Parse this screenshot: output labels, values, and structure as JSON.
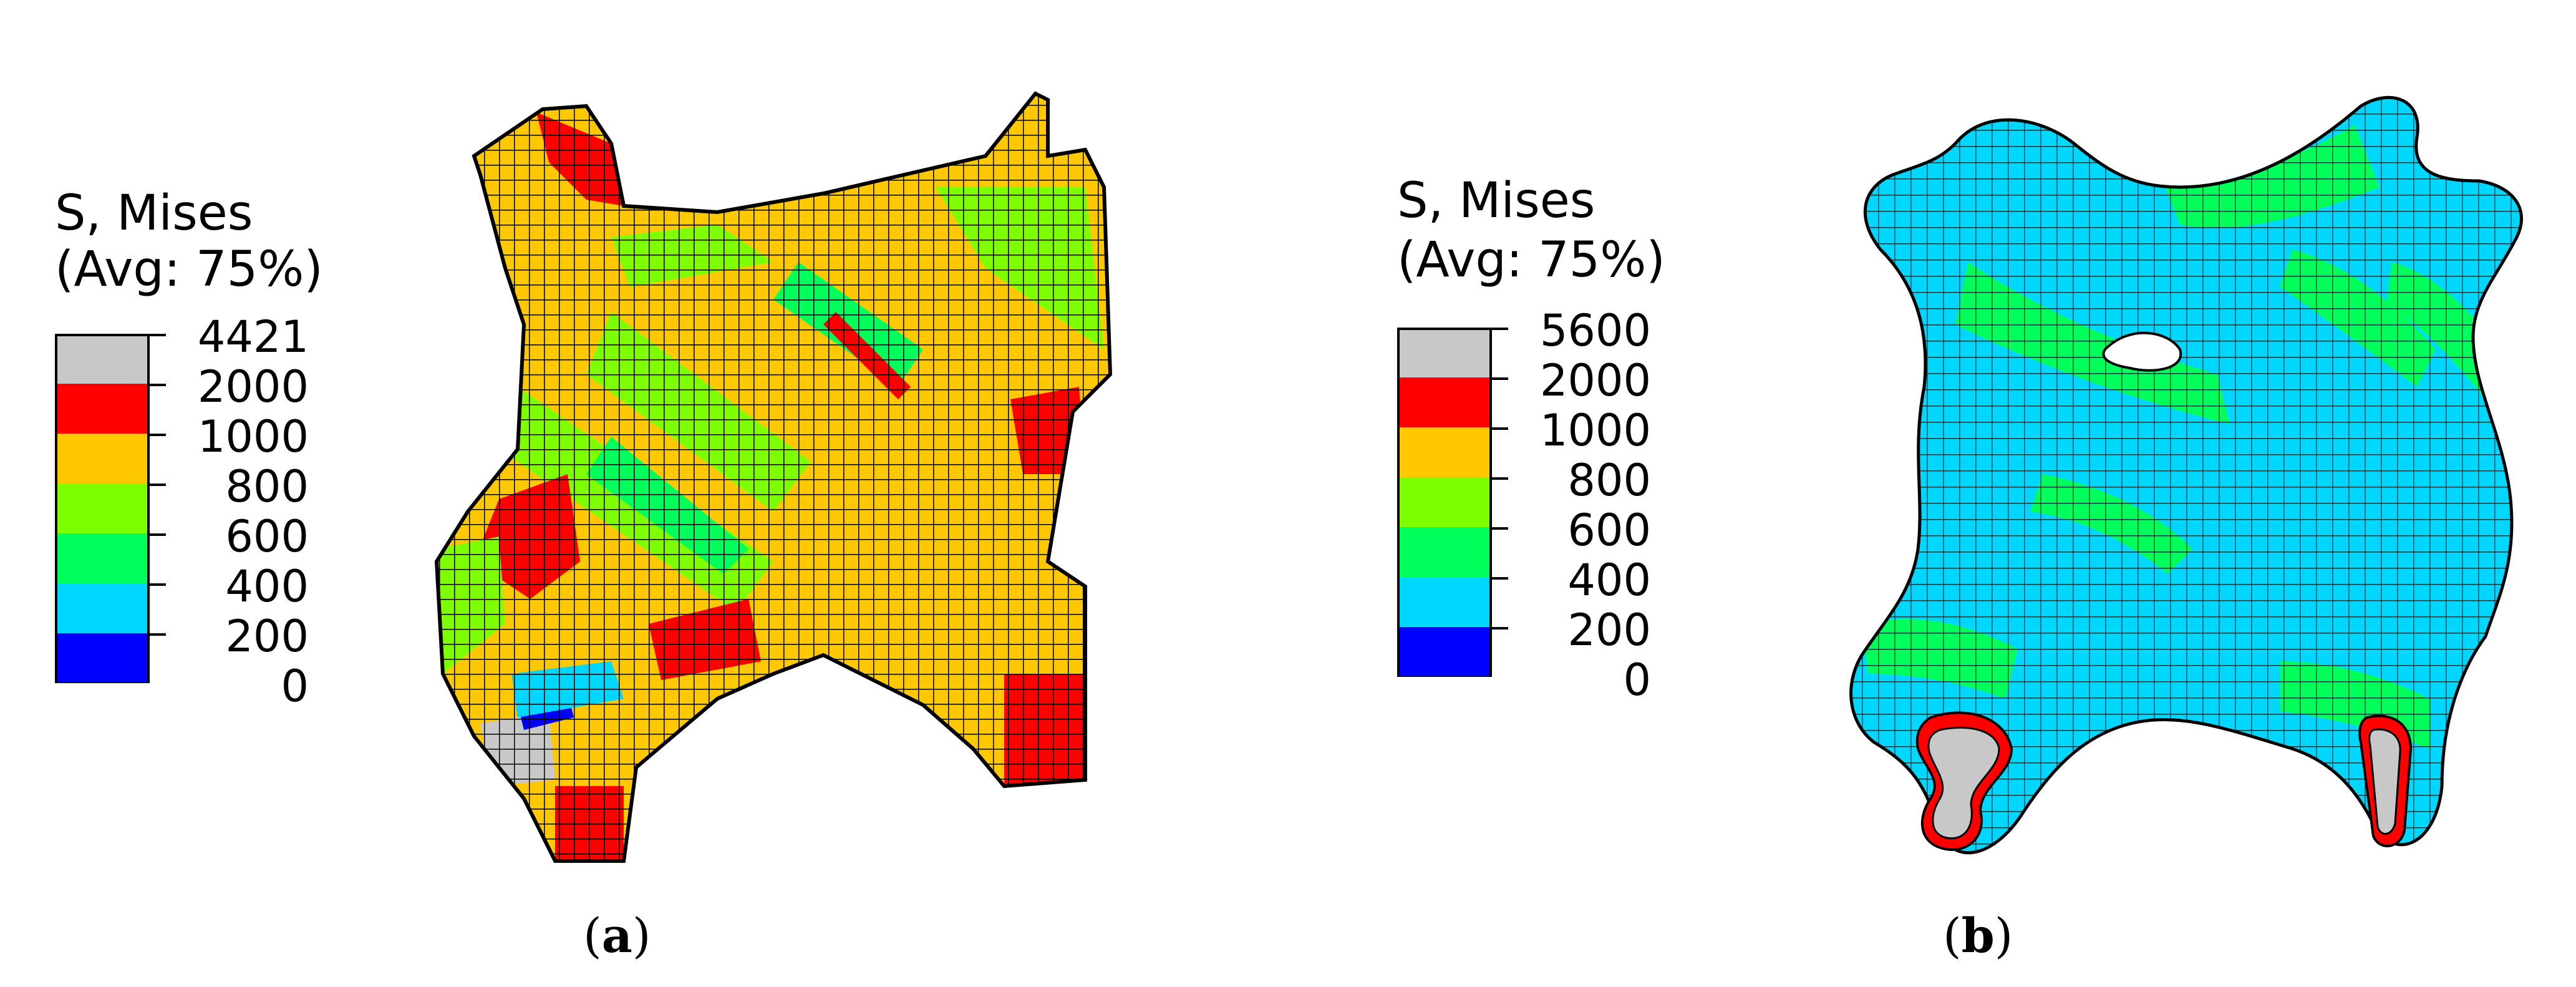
{
  "panels": [
    {
      "caption_letter": "a",
      "legend": {
        "title_line1": "S, Mises",
        "title_line2": "(Avg: 75%)",
        "ticks": [
          "4421",
          "2000",
          "1000",
          "800",
          "600",
          "400",
          "200",
          "0"
        ],
        "colors": [
          "#c8c8c8",
          "#ff0000",
          "#ffc800",
          "#7dff00",
          "#00ff5a",
          "#00d7ff",
          "#0000ff"
        ]
      }
    },
    {
      "caption_letter": "b",
      "legend": {
        "title_line1": "S, Mises",
        "title_line2": "(Avg: 75%)",
        "ticks": [
          "5600",
          "2000",
          "1000",
          "800",
          "600",
          "400",
          "200",
          "0"
        ],
        "colors": [
          "#c8c8c8",
          "#ff0000",
          "#ffc800",
          "#7dff00",
          "#00ff5a",
          "#00d7ff",
          "#0000ff"
        ]
      }
    }
  ]
}
